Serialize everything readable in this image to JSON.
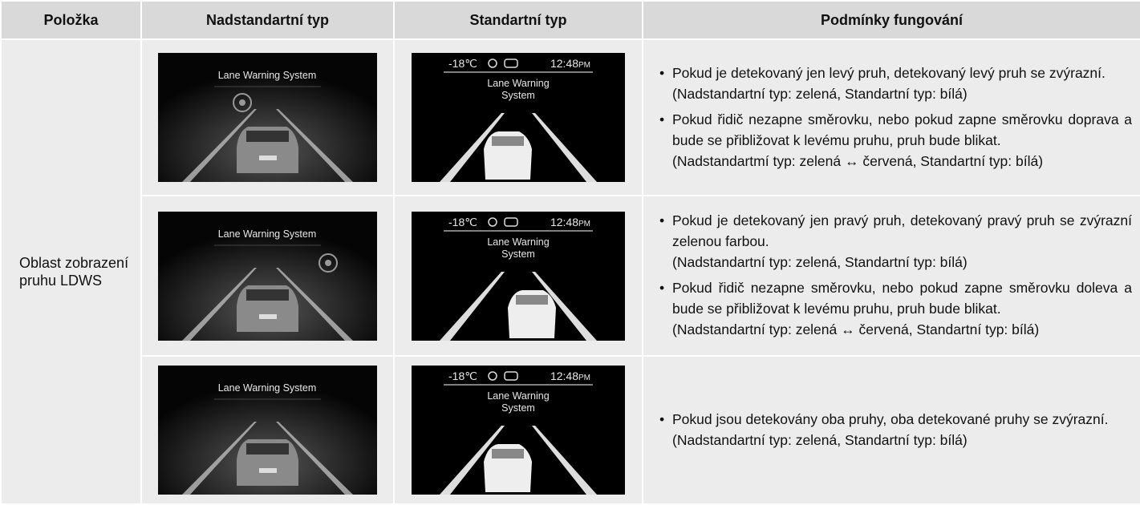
{
  "table": {
    "header": [
      "Položka",
      "Nadstandartní typ",
      "Standartní typ",
      "Podmínky fungování"
    ],
    "item": "Oblast zobrazení pruhu LDWS",
    "rows": [
      {
        "premium": {
          "label": "Lane Warning System"
        },
        "standard": {
          "temp": "-18℃",
          "time": "12:48",
          "meridiem": "PM",
          "label": [
            "Lane Warning",
            "System"
          ]
        },
        "conditions": [
          {
            "text": "Pokud je detekovaný jen levý pruh, detekovaný levý pruh se zvýrazní.",
            "note": "(Nadstandartní typ: zelená, Standartní typ: bílá)"
          },
          {
            "text": "Pokud řidič nezapne směrovku, nebo pokud zapne směrovku doprava a bude se přibližovat k levému pruhu, pruh bude blikat.",
            "note": "(Nadstandartmí typ: zelená ↔ červená, Standartní typ: bílá)"
          }
        ]
      },
      {
        "premium": {
          "label": "Lane Warning System"
        },
        "standard": {
          "temp": "-18℃",
          "time": "12:48",
          "meridiem": "PM",
          "label": [
            "Lane Warning",
            "System"
          ]
        },
        "conditions": [
          {
            "text": "Pokud je detekovaný jen pravý pruh, detekovaný pravý pruh se zvýrazní zelenou farbou.",
            "note": "(Nadstandartní typ: zelená, Standartní typ: bílá)"
          },
          {
            "text": "Pokud řidič nezapne směrovku, nebo pokud zapne směrovku doleva a bude se přibližovat k levému pruhu, pruh bude blikat.",
            "note": "(Nadstandartní typ: zelená ↔ červená, Standartní typ: bílá)"
          }
        ]
      },
      {
        "premium": {
          "label": "Lane Warning System"
        },
        "standard": {
          "temp": "-18℃",
          "time": "12:48",
          "meridiem": "PM",
          "label": [
            "Lane Warning",
            "System"
          ]
        },
        "conditions": [
          {
            "text": "Pokud jsou detekovány oba pruhy, oba detekované pruhy se zvýrazní.",
            "note": "(Nadstandartní typ: zelená, Standartní typ: bílá)"
          }
        ]
      }
    ]
  }
}
